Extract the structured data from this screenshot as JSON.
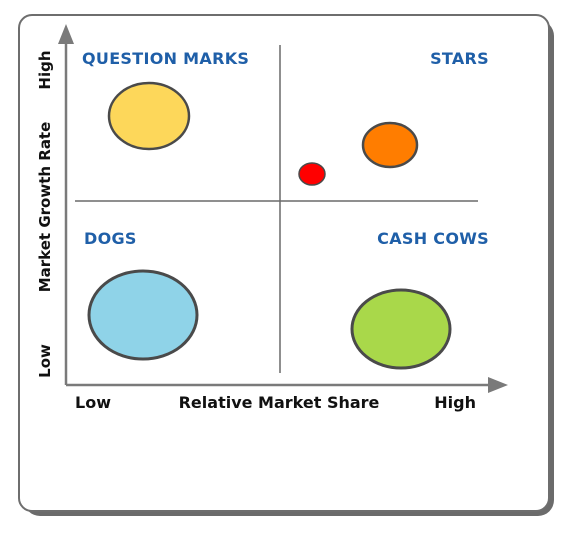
{
  "quadrants": {
    "question_marks": "QUESTION MARKS",
    "stars": "STARS",
    "dogs": "DOGS",
    "cash_cows": "CASH COWS"
  },
  "axes": {
    "x_label": "Relative Market Share",
    "x_low": "Low",
    "x_high": "High",
    "y_label": "Market Growth Rate",
    "y_low": "Low",
    "y_high": "High"
  },
  "colors": {
    "quadrant_label": "#1f5fa8",
    "question_mark_bubble": "#fdd75a",
    "star_large_bubble": "#ff7d00",
    "star_small_bubble": "#ff0000",
    "dog_bubble": "#8fd3e8",
    "cash_cow_bubble": "#a9d84a"
  }
}
